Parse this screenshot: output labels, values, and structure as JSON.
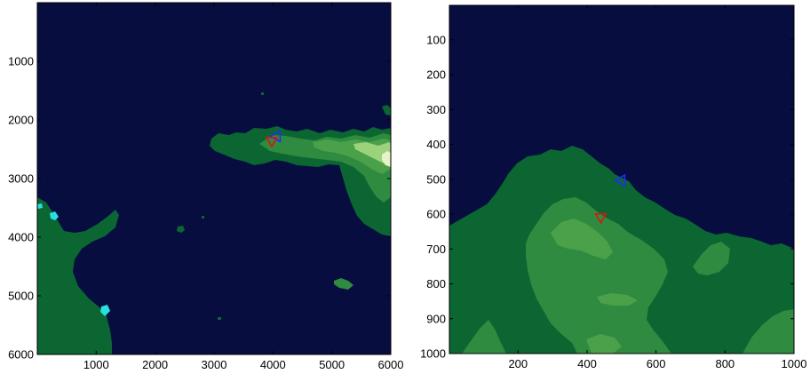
{
  "chart_data": [
    {
      "type": "heatmap",
      "title": "",
      "xlabel": "",
      "ylabel": "",
      "xlim": [
        1,
        6000
      ],
      "ylim": [
        1,
        6000
      ],
      "y_reversed": true,
      "xticks": [
        1000,
        2000,
        3000,
        4000,
        5000,
        6000
      ],
      "yticks": [
        1000,
        2000,
        3000,
        4000,
        5000,
        6000
      ],
      "colors": {
        "sea": "#070d3f",
        "lowland": "#0b6632",
        "hills": "#2f8b3f",
        "upland": "#4ba14a",
        "highland": "#9cd27c",
        "peak": "#e6f3c8",
        "cyan": "#27e0e0"
      },
      "markers": [
        {
          "shape": "triangle-left",
          "color": "#1f2cff",
          "x": 4050,
          "y": 2280
        },
        {
          "shape": "triangle-down",
          "color": "#e01212",
          "x": 3980,
          "y": 2370
        }
      ]
    },
    {
      "type": "heatmap",
      "title": "",
      "xlabel": "",
      "ylabel": "",
      "xlim": [
        1,
        1000
      ],
      "ylim": [
        1,
        1000
      ],
      "y_reversed": true,
      "xticks": [
        200,
        400,
        600,
        800,
        1000
      ],
      "yticks": [
        100,
        200,
        300,
        400,
        500,
        600,
        700,
        800,
        900,
        1000
      ],
      "colors": {
        "sea": "#070d3f",
        "lowland": "#0b6632",
        "hills": "#2f8b3f",
        "upland": "#4ba14a"
      },
      "markers": [
        {
          "shape": "triangle-left",
          "color": "#1f2cff",
          "x": 497,
          "y": 503
        },
        {
          "shape": "triangle-down",
          "color": "#e01212",
          "x": 440,
          "y": 611
        }
      ]
    }
  ]
}
